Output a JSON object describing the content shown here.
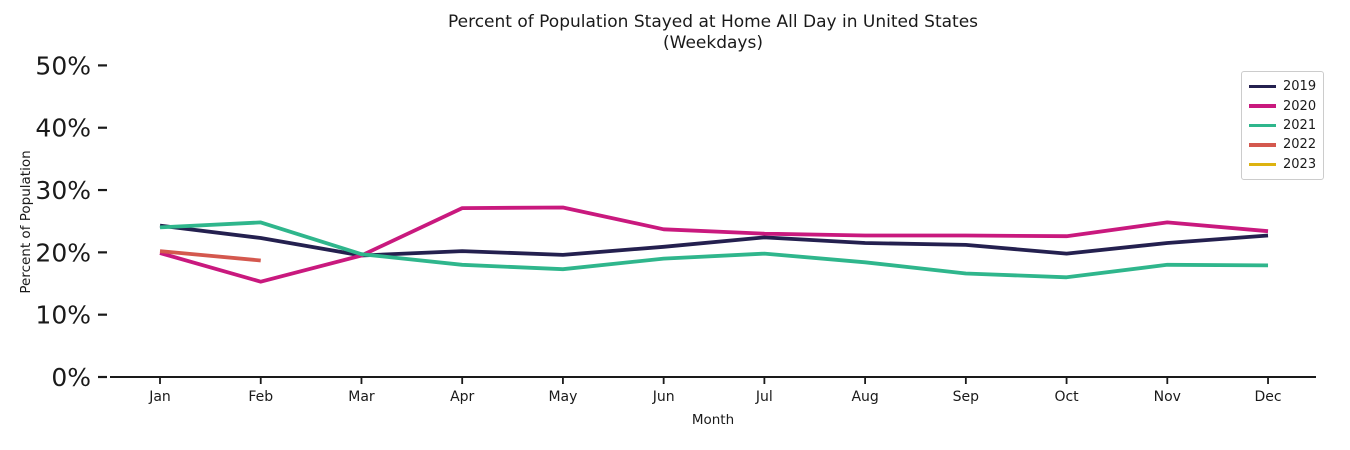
{
  "figure": {
    "title_line1": "Percent of Population Stayed at Home All Day in United States",
    "title_line2": "(Weekdays)",
    "xlabel": "Month",
    "ylabel": "Percent of Population"
  },
  "chart_data": {
    "type": "line",
    "title": "Percent of Population Stayed at Home All Day in United States (Weekdays)",
    "xlabel": "Month",
    "ylabel": "Percent of Population",
    "x": [
      "Jan",
      "Feb",
      "Mar",
      "Apr",
      "May",
      "Jun",
      "Jul",
      "Aug",
      "Sep",
      "Oct",
      "Nov",
      "Dec"
    ],
    "ytick_labels": [
      "0%",
      "10%",
      "20%",
      "30%",
      "40%",
      "50%"
    ],
    "ytick_values": [
      0,
      10,
      20,
      30,
      40,
      50
    ],
    "ylim": [
      0,
      52.5
    ],
    "grid": false,
    "legend_position": "upper right",
    "axis_color": "#1a1a1a",
    "series": [
      {
        "name": "2019",
        "color": "#24204f",
        "values": [
          24.3,
          22.3,
          19.5,
          20.2,
          19.6,
          20.9,
          22.4,
          21.5,
          21.2,
          19.8,
          21.5,
          22.7
        ]
      },
      {
        "name": "2020",
        "color": "#c9197e",
        "values": [
          19.9,
          15.3,
          19.5,
          27.1,
          27.2,
          23.7,
          23.0,
          22.7,
          22.7,
          22.6,
          24.8,
          23.4
        ]
      },
      {
        "name": "2021",
        "color": "#2fb68c",
        "values": [
          24.0,
          24.8,
          19.7,
          18.0,
          17.3,
          19.0,
          19.8,
          18.4,
          16.6,
          16.0,
          18.0,
          17.9
        ]
      },
      {
        "name": "2022",
        "color": "#d4584e",
        "values": [
          20.2,
          18.7,
          null,
          null,
          null,
          null,
          null,
          null,
          null,
          null,
          null,
          null
        ]
      },
      {
        "name": "2023",
        "color": "#ddb310",
        "values": [
          null,
          null,
          null,
          null,
          null,
          null,
          null,
          null,
          null,
          null,
          null,
          null
        ]
      }
    ]
  }
}
